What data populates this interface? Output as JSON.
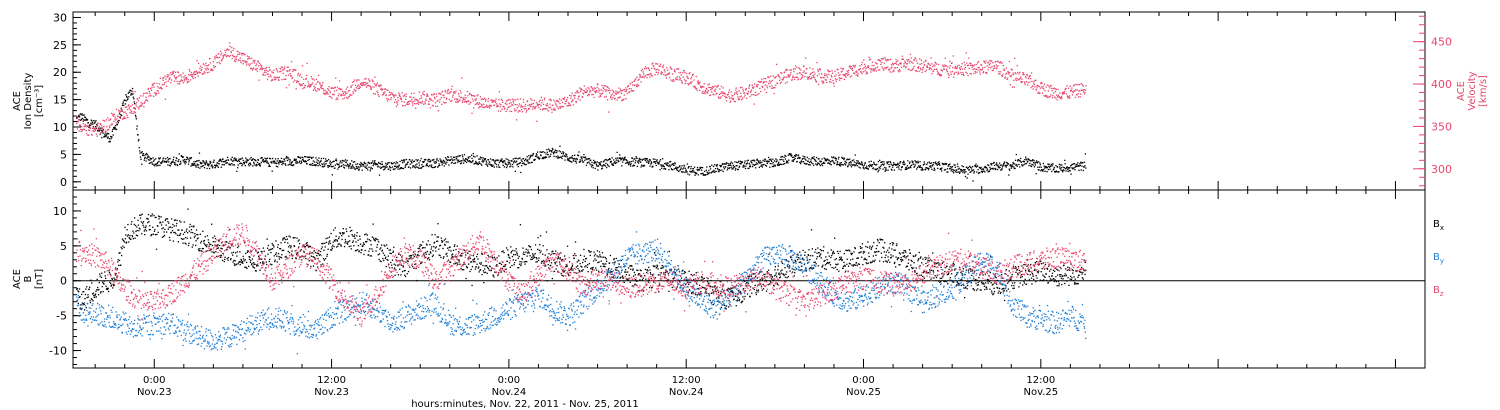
{
  "chart_data": [
    {
      "type": "scatter",
      "panel": "top",
      "ylabel_left": [
        "ACE",
        "Ion Density",
        "[cm⁻³]"
      ],
      "ylabel_right": [
        "ACE",
        "Velocity",
        "[km/s]"
      ],
      "ylim_left": [
        -1.5,
        31
      ],
      "ylim_right": [
        275,
        485
      ],
      "yticks_left": [
        0,
        5,
        10,
        15,
        20,
        25,
        30
      ],
      "yticks_right": [
        300,
        350,
        400,
        450
      ],
      "xlim_hours": [
        -5.5,
        86
      ],
      "data_end_hour": 63,
      "series": [
        {
          "axis": "left",
          "color": "#000000",
          "x": [
            -5.3,
            -5,
            -4.5,
            -4,
            -3.5,
            -3,
            -2.5,
            -2,
            -1.5,
            -1,
            0,
            1,
            2,
            3,
            4,
            5,
            6,
            7,
            8,
            9,
            10,
            11,
            12,
            13,
            14,
            15,
            16,
            17,
            18,
            19,
            20,
            21,
            22,
            23,
            24,
            25,
            26,
            27,
            28,
            29,
            30,
            31,
            32,
            33,
            34,
            35,
            36,
            37,
            38,
            39,
            40,
            41,
            42,
            43,
            44,
            45,
            46,
            47,
            48,
            49,
            50,
            51,
            52,
            53,
            54,
            55,
            56,
            57,
            58,
            59,
            60,
            61,
            62,
            63
          ],
          "y": [
            11.5,
            12,
            11,
            10.5,
            9,
            8,
            11,
            15,
            17,
            5,
            3.8,
            3.8,
            4.2,
            3.2,
            3.3,
            4,
            3.8,
            3.8,
            3.6,
            3.8,
            4,
            3.8,
            3.4,
            3.3,
            3,
            3.2,
            3,
            3.4,
            3.4,
            3.5,
            4,
            4.3,
            4,
            3.5,
            3.5,
            3.8,
            5,
            5.5,
            4.5,
            4,
            3,
            3.8,
            3.8,
            3.6,
            3.5,
            3,
            2.2,
            2,
            2.5,
            3,
            3.2,
            3.5,
            3.5,
            4.5,
            4,
            3.8,
            4,
            3.5,
            3.2,
            3,
            3,
            3.2,
            3,
            3,
            2.5,
            2.2,
            2.5,
            3,
            3,
            4,
            2.8,
            2.5,
            2.8,
            3
          ]
        },
        {
          "axis": "right",
          "color": "#e8456e",
          "x": [
            -5.3,
            -5,
            -4.5,
            -4,
            -3.5,
            -3,
            -2.5,
            -2,
            -1.5,
            -1,
            0,
            1,
            2,
            3,
            4,
            5,
            6,
            7,
            8,
            9,
            10,
            11,
            12,
            13,
            14,
            15,
            16,
            17,
            18,
            19,
            20,
            21,
            22,
            23,
            24,
            25,
            26,
            27,
            28,
            29,
            30,
            31,
            32,
            33,
            34,
            35,
            36,
            37,
            38,
            39,
            40,
            41,
            42,
            43,
            44,
            45,
            46,
            47,
            48,
            49,
            50,
            51,
            52,
            53,
            54,
            55,
            56,
            57,
            58,
            59,
            60,
            61,
            62,
            63
          ],
          "y": [
            356,
            350,
            348,
            346,
            350,
            355,
            365,
            368,
            371,
            380,
            395,
            408,
            407,
            418,
            425,
            440,
            430,
            420,
            410,
            415,
            405,
            400,
            390,
            390,
            405,
            395,
            385,
            382,
            385,
            382,
            388,
            385,
            380,
            375,
            376,
            375,
            378,
            375,
            380,
            392,
            393,
            388,
            390,
            412,
            420,
            412,
            409,
            398,
            392,
            387,
            390,
            398,
            405,
            412,
            415,
            410,
            409,
            415,
            420,
            425,
            422,
            425,
            422,
            418,
            420,
            418,
            420,
            422,
            410,
            405,
            395,
            390,
            391,
            395
          ]
        }
      ]
    },
    {
      "type": "scatter",
      "panel": "bottom",
      "ylabel_left": [
        "ACE",
        "B",
        "[nT]"
      ],
      "ylim": [
        -12.5,
        13
      ],
      "yticks": [
        -10,
        -5,
        0,
        5,
        10
      ],
      "xlim_hours": [
        -5.5,
        86
      ],
      "data_end_hour": 63,
      "zero_line": true,
      "x_ticks": [
        {
          "hour": 0,
          "time": "0:00",
          "date": "Nov.23"
        },
        {
          "hour": 12,
          "time": "12:00",
          "date": "Nov.23"
        },
        {
          "hour": 24,
          "time": "0:00",
          "date": "Nov.24"
        },
        {
          "hour": 36,
          "time": "12:00",
          "date": "Nov.24"
        },
        {
          "hour": 48,
          "time": "0:00",
          "date": "Nov.25"
        },
        {
          "hour": 60,
          "time": "12:00",
          "date": "Nov.25"
        }
      ],
      "xlabel": "hours:minutes, Nov. 22, 2011 - Nov. 25, 2011",
      "legend": [
        "Bx",
        "By",
        "Bz"
      ],
      "series": [
        {
          "name": "Bx",
          "color": "#000000",
          "x": [
            -5.3,
            -5,
            -4.5,
            -4,
            -3.5,
            -3,
            -2.5,
            -2,
            -1.5,
            -1,
            0,
            1,
            2,
            3,
            4,
            5,
            6,
            7,
            8,
            9,
            10,
            11,
            12,
            13,
            14,
            15,
            16,
            17,
            18,
            19,
            20,
            21,
            22,
            23,
            24,
            25,
            26,
            27,
            28,
            29,
            30,
            31,
            32,
            33,
            34,
            35,
            36,
            37,
            38,
            39,
            40,
            41,
            42,
            43,
            44,
            45,
            46,
            47,
            48,
            49,
            50,
            51,
            52,
            53,
            54,
            55,
            56,
            57,
            58,
            59,
            60,
            61,
            62,
            63
          ],
          "y": [
            -2,
            -3,
            -2,
            -1,
            0,
            0,
            2,
            7,
            7.5,
            8,
            8.2,
            7.5,
            7,
            6,
            5,
            4,
            3.5,
            3,
            4,
            5,
            4.5,
            3,
            6,
            6.5,
            5.5,
            5,
            3,
            2,
            4,
            5.5,
            4,
            3,
            2.5,
            2,
            3.5,
            3.5,
            4,
            3,
            2,
            3,
            2.8,
            2,
            1,
            0,
            1,
            0.5,
            0,
            -0.5,
            -2,
            -2.5,
            -1,
            0,
            1,
            2,
            3,
            3.5,
            3,
            3,
            4,
            4.5,
            4,
            3,
            2,
            1.5,
            1,
            0.5,
            0,
            -0.5,
            0.5,
            1,
            1.5,
            0.8,
            1,
            1.3
          ]
        },
        {
          "name": "By",
          "color": "#1f7fd6",
          "x": [
            -5.3,
            -5,
            -4.5,
            -4,
            -3.5,
            -3,
            -2.5,
            -2,
            -1.5,
            -1,
            0,
            1,
            2,
            3,
            4,
            5,
            6,
            7,
            8,
            9,
            10,
            11,
            12,
            13,
            14,
            15,
            16,
            17,
            18,
            19,
            20,
            21,
            22,
            23,
            24,
            25,
            26,
            27,
            28,
            29,
            30,
            31,
            32,
            33,
            34,
            35,
            36,
            37,
            38,
            39,
            40,
            41,
            42,
            43,
            44,
            45,
            46,
            47,
            48,
            49,
            50,
            51,
            52,
            53,
            54,
            55,
            56,
            57,
            58,
            59,
            60,
            61,
            62,
            63
          ],
          "y": [
            -3,
            -4,
            -5,
            -4.5,
            -5,
            -5,
            -6,
            -6,
            -7,
            -6.5,
            -6,
            -6,
            -7,
            -8,
            -8.5,
            -8,
            -7,
            -6,
            -5,
            -6,
            -6.5,
            -7,
            -5,
            -4,
            -3,
            -4,
            -6,
            -5,
            -4,
            -3,
            -6,
            -6.5,
            -6,
            -5,
            -4,
            -3,
            -2,
            -4,
            -5,
            -3,
            -1,
            1,
            3.5,
            4,
            4.5,
            2,
            -1,
            -3,
            -4,
            -2,
            0,
            3,
            4,
            3.5,
            2,
            0,
            -2,
            -3,
            -2,
            -1,
            0,
            -1,
            -3,
            -2,
            -1,
            1,
            3,
            2,
            -3,
            -5,
            -5.5,
            -6,
            -5,
            -6
          ]
        },
        {
          "name": "Bz",
          "color": "#e8456e",
          "x": [
            -5.3,
            -5,
            -4.5,
            -4,
            -3.5,
            -3,
            -2.5,
            -2,
            -1.5,
            -1,
            0,
            1,
            2,
            3,
            4,
            5,
            6,
            7,
            8,
            9,
            10,
            11,
            12,
            13,
            14,
            15,
            16,
            17,
            18,
            19,
            20,
            21,
            22,
            23,
            24,
            25,
            26,
            27,
            28,
            29,
            30,
            31,
            32,
            33,
            34,
            35,
            36,
            37,
            38,
            39,
            40,
            41,
            42,
            43,
            44,
            45,
            46,
            47,
            48,
            49,
            50,
            51,
            52,
            53,
            54,
            55,
            56,
            57,
            58,
            59,
            60,
            61,
            62,
            63
          ],
          "y": [
            4.5,
            4.5,
            4,
            3.5,
            3,
            2,
            0,
            -1,
            -2,
            -3,
            -3,
            -2,
            0,
            2,
            4,
            6,
            7,
            4,
            0,
            2,
            4,
            3,
            0,
            -3,
            -5,
            -2,
            2,
            4,
            3,
            0,
            2,
            4,
            6,
            3,
            0,
            -2,
            1,
            3,
            2,
            -1,
            0.5,
            0,
            -1,
            -0.5,
            0,
            0,
            -1,
            0,
            -0.5,
            -1,
            0,
            0.5,
            -1,
            -2,
            -3,
            -2,
            -1,
            0,
            0.5,
            0,
            -0.5,
            0,
            1,
            2,
            3,
            3,
            2,
            1,
            2,
            2.5,
            3,
            3.5,
            3,
            3
          ]
        }
      ]
    }
  ]
}
